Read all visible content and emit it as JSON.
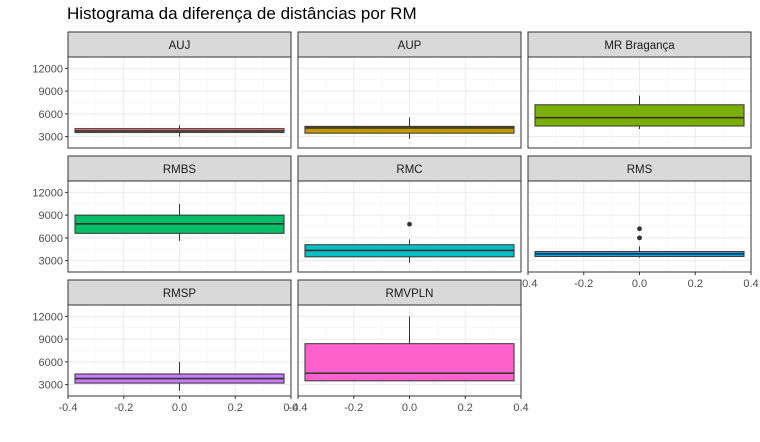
{
  "chart_data": {
    "type": "boxplot",
    "title": "Histograma da diferença de distâncias por RM",
    "xlabel": "",
    "ylabel": "",
    "xlim": [
      -0.4,
      0.4
    ],
    "ylim": [
      1500,
      13500
    ],
    "y_ticks": [
      3000,
      6000,
      9000,
      12000
    ],
    "y_tick_labels": [
      "3000",
      "6000",
      "9000",
      "12000"
    ],
    "x_ticks": [
      -0.4,
      -0.2,
      0.0,
      0.2,
      0.4
    ],
    "x_tick_labels": [
      "-0.4",
      "-0.2",
      "0.0",
      "0.2",
      "0.4"
    ],
    "grid": true,
    "facets": [
      {
        "label": "AUJ",
        "fill": "#F8766D",
        "whisker_low": 3000,
        "q1": 3550,
        "median": 3750,
        "q3": 4050,
        "whisker_high": 4500,
        "outliers": []
      },
      {
        "label": "AUP",
        "fill": "#C49A00",
        "whisker_low": 2700,
        "q1": 3450,
        "median": 4150,
        "q3": 4350,
        "whisker_high": 5500,
        "outliers": []
      },
      {
        "label": "MR Bragança",
        "fill": "#7CAE00",
        "whisker_low": 4000,
        "q1": 4400,
        "median": 5500,
        "q3": 7200,
        "whisker_high": 8400,
        "outliers": []
      },
      {
        "label": "RMBS",
        "fill": "#00BE67",
        "whisker_low": 5600,
        "q1": 6600,
        "median": 7850,
        "q3": 9000,
        "whisker_high": 10500,
        "outliers": []
      },
      {
        "label": "RMC",
        "fill": "#00BFC4",
        "whisker_low": 2700,
        "q1": 3500,
        "median": 4350,
        "q3": 5100,
        "whisker_high": 5800,
        "outliers": [
          7800
        ]
      },
      {
        "label": "RMS",
        "fill": "#00A9FF",
        "whisker_low": 3400,
        "q1": 3550,
        "median": 3900,
        "q3": 4200,
        "whisker_high": 4900,
        "outliers": [
          6000,
          7200
        ]
      },
      {
        "label": "RMSP",
        "fill": "#C77CFF",
        "whisker_low": 2200,
        "q1": 3200,
        "median": 3800,
        "q3": 4400,
        "whisker_high": 6000,
        "outliers": []
      },
      {
        "label": "RMVPLN",
        "fill": "#FF61CC",
        "whisker_low": 3500,
        "q1": 3500,
        "median": 4500,
        "q3": 8400,
        "whisker_high": 12000,
        "outliers": []
      }
    ]
  }
}
